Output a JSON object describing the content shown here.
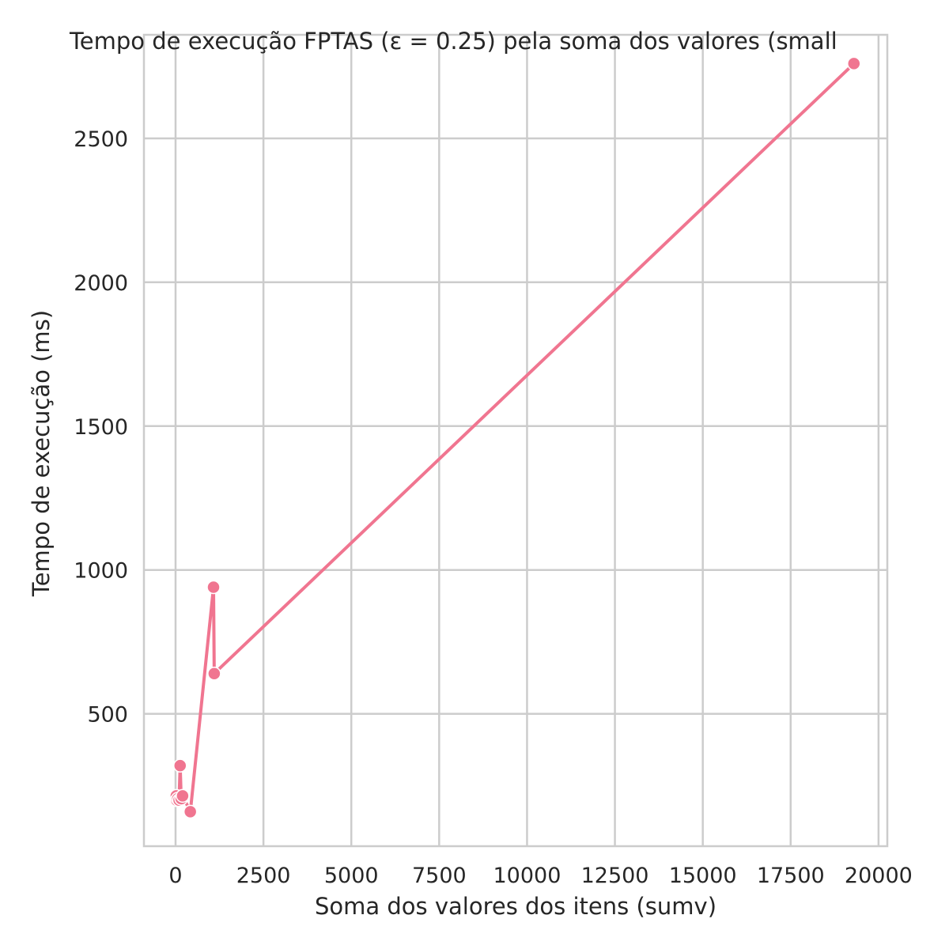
{
  "chart_data": {
    "type": "line",
    "title": "Tempo de execução FPTAS (ε = 0.25) pela soma dos valores (small",
    "xlabel": "Soma dos valores dos itens (sumv)",
    "ylabel": "Tempo de execução (ms)",
    "xlim": [
      -900,
      20250
    ],
    "ylim": [
      40,
      2860
    ],
    "x_ticks": [
      0,
      2500,
      5000,
      7500,
      10000,
      12500,
      15000,
      17500,
      20000
    ],
    "y_ticks": [
      500,
      1000,
      1500,
      2000,
      2500
    ],
    "x_tick_labels": [
      "0",
      "2500",
      "5000",
      "7500",
      "10000",
      "12500",
      "15000",
      "17500",
      "20000"
    ],
    "y_tick_labels": [
      "500",
      "1000",
      "1500",
      "2000",
      "2500"
    ],
    "grid": true,
    "line_color": "#f07590",
    "series": [
      {
        "points": [
          {
            "x": 20,
            "y": 215
          },
          {
            "x": 30,
            "y": 200
          },
          {
            "x": 60,
            "y": 205
          },
          {
            "x": 100,
            "y": 200
          },
          {
            "x": 130,
            "y": 320
          },
          {
            "x": 160,
            "y": 205
          },
          {
            "x": 200,
            "y": 215
          },
          {
            "x": 420,
            "y": 160
          },
          {
            "x": 1080,
            "y": 940
          },
          {
            "x": 1100,
            "y": 640
          },
          {
            "x": 19300,
            "y": 2760
          }
        ]
      }
    ]
  }
}
